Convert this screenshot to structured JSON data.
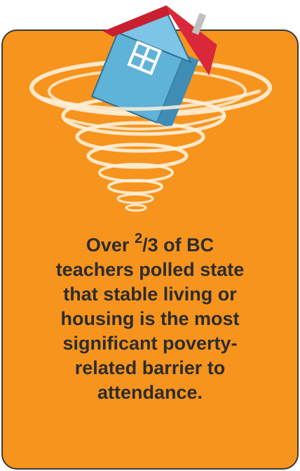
{
  "statement": {
    "lead": "Over",
    "numerator": "2",
    "after": "/3 of BC",
    "lines": [
      "teachers polled state",
      "that stable living or",
      "housing is the most",
      "significant poverty-",
      "related barrier to",
      "attendance."
    ]
  }
}
